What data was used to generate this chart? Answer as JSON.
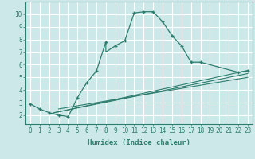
{
  "xlabel": "Humidex (Indice chaleur)",
  "bg_color": "#cde8e8",
  "grid_color": "#c0d8d8",
  "line_color": "#2d7d6e",
  "xlim": [
    -0.5,
    23.5
  ],
  "ylim": [
    1.3,
    11.0
  ],
  "xticks": [
    0,
    1,
    2,
    3,
    4,
    5,
    6,
    7,
    8,
    9,
    10,
    11,
    12,
    13,
    14,
    15,
    16,
    17,
    18,
    19,
    20,
    21,
    22,
    23
  ],
  "yticks": [
    2,
    3,
    4,
    5,
    6,
    7,
    8,
    9,
    10
  ],
  "main_x": [
    0,
    1,
    2,
    3,
    4,
    4,
    5,
    6,
    7,
    8,
    8,
    9,
    10,
    11,
    12,
    13,
    14,
    15,
    16,
    17,
    18,
    22,
    23
  ],
  "main_y": [
    2.9,
    2.5,
    2.2,
    2.0,
    1.9,
    1.85,
    3.4,
    4.6,
    5.5,
    7.8,
    7.0,
    7.5,
    7.9,
    10.1,
    10.2,
    10.2,
    9.4,
    8.3,
    7.5,
    6.2,
    6.2,
    5.4,
    5.5
  ],
  "marker_x": [
    0,
    1,
    2,
    3,
    4,
    5,
    6,
    7,
    8,
    9,
    10,
    11,
    12,
    13,
    14,
    15,
    16,
    17,
    18,
    22,
    23
  ],
  "marker_y": [
    2.9,
    2.5,
    2.2,
    2.0,
    1.85,
    3.4,
    4.6,
    5.5,
    7.8,
    7.5,
    7.9,
    10.1,
    10.2,
    10.2,
    9.4,
    8.3,
    7.5,
    6.2,
    6.2,
    5.4,
    5.5
  ],
  "line1_x": [
    2.0,
    23
  ],
  "line1_y": [
    2.1,
    5.55
  ],
  "line2_x": [
    2.5,
    23
  ],
  "line2_y": [
    2.2,
    5.3
  ],
  "line3_x": [
    3.0,
    23
  ],
  "line3_y": [
    2.5,
    5.0
  ]
}
